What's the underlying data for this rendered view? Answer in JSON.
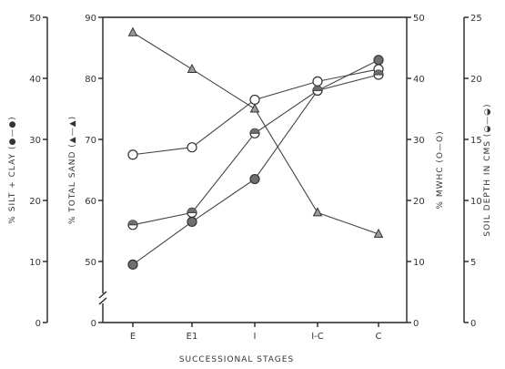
{
  "chart_data": {
    "type": "line",
    "xlabel": "SUCCESSIONAL STAGES",
    "categories": [
      "E",
      "E1",
      "I",
      "I-C",
      "C"
    ],
    "axes": {
      "silt_clay": {
        "label": "% SILT + CLAY (●—●)",
        "ylim": [
          0,
          50
        ],
        "ticks": [
          0,
          10,
          20,
          30,
          40,
          50
        ]
      },
      "total_sand": {
        "label": "% TOTAL SAND (▲—▲)",
        "ylim": [
          40,
          90
        ],
        "ticks": [
          0,
          50,
          60,
          70,
          80,
          90
        ],
        "axis_break": true
      },
      "mwhc": {
        "label": "% MWHC (O—O)",
        "ylim": [
          0,
          50
        ],
        "ticks": [
          0,
          10,
          20,
          30,
          40,
          50
        ]
      },
      "soil_depth": {
        "label": "SOIL DEPTH IN CMS (◒—◒)",
        "ylim": [
          0,
          25
        ],
        "ticks": [
          0,
          5,
          10,
          15,
          20,
          25
        ]
      }
    },
    "series": [
      {
        "axis": "total_sand",
        "marker": "triangle",
        "values": [
          87.5,
          81.5,
          75,
          58,
          54.5
        ]
      },
      {
        "axis": "mwhc",
        "marker": "open-circle",
        "values": [
          27.5,
          28.7,
          36.5,
          39.5,
          41.5
        ]
      },
      {
        "axis": "silt_clay",
        "marker": "filled-circle",
        "values": [
          9.5,
          16.5,
          23.5,
          38,
          43
        ]
      },
      {
        "axis": "soil_depth",
        "marker": "half-circle",
        "values": [
          8,
          9,
          15.5,
          19,
          20.3
        ]
      }
    ]
  }
}
